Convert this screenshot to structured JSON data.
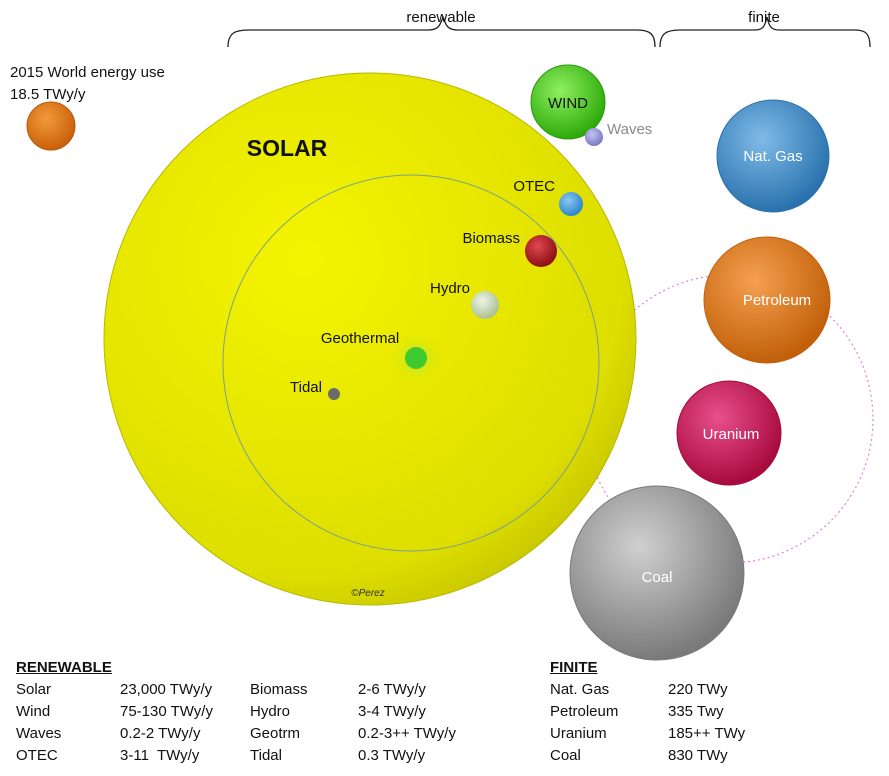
{
  "header": {
    "renewable_label": "renewable",
    "finite_label": "finite"
  },
  "world_use": {
    "line1": "2015 World energy use",
    "line2": "18.5 TWy/y"
  },
  "bubbles": {
    "solar": "SOLAR",
    "wind": "WIND",
    "waves": "Waves",
    "otec": "OTEC",
    "biomass": "Biomass",
    "hydro": "Hydro",
    "geothermal": "Geothermal",
    "tidal": "Tidal",
    "natgas": "Nat. Gas",
    "petroleum": "Petroleum",
    "uranium": "Uranium",
    "coal": "Coal"
  },
  "credit": "©Perez",
  "renewable_table": {
    "title": "RENEWABLE",
    "rows": [
      {
        "a_name": "Solar",
        "a_value": "23,000 TWy/y",
        "b_name": "Biomass",
        "b_value": "2-6 TWy/y"
      },
      {
        "a_name": "Wind",
        "a_value": "75-130 TWy/y",
        "b_name": "Hydro",
        "b_value": "3-4 TWy/y"
      },
      {
        "a_name": "Waves",
        "a_value": "0.2-2 TWy/y",
        "b_name": "Geotrm",
        "b_value": "0.2-3++ TWy/y"
      },
      {
        "a_name": "OTEC",
        "a_value": "3-11  TWy/y",
        "b_name": "Tidal",
        "b_value": "0.3 TWy/y"
      }
    ]
  },
  "finite_table": {
    "title": "FINITE",
    "rows": [
      {
        "name": "Nat. Gas",
        "value": "220 TWy"
      },
      {
        "name": "Petroleum",
        "value": "335 Twy"
      },
      {
        "name": "Uranium",
        "value": "185++ TWy"
      },
      {
        "name": "Coal",
        "value": "830 TWy"
      }
    ]
  },
  "colors": {
    "solar": "#e6e600",
    "wind": "#44cc11",
    "waves": "#9a9ad8",
    "otec": "#3a9be0",
    "biomass": "#b01820",
    "hydro": "#c9d9b8",
    "geothermal": "#3fc930",
    "tidal": "#6b6b6b",
    "world": "#e57a10",
    "natgas": "#3d8ec9",
    "petroleum": "#e07810",
    "uranium": "#cc1050",
    "coal": "#9a9a9a",
    "dashed_circle": "#e080e0"
  }
}
